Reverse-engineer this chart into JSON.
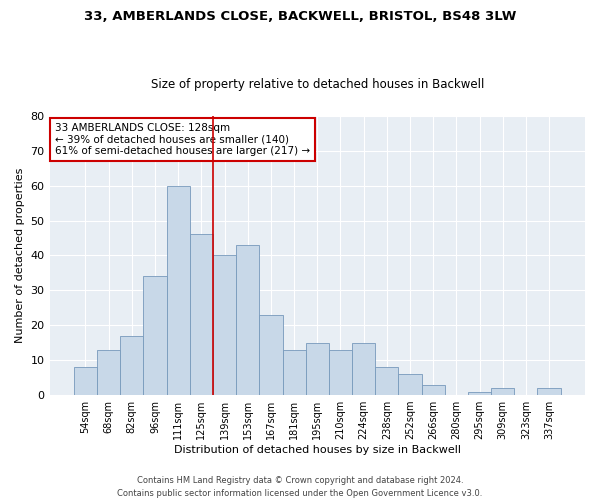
{
  "title1": "33, AMBERLANDS CLOSE, BACKWELL, BRISTOL, BS48 3LW",
  "title2": "Size of property relative to detached houses in Backwell",
  "xlabel": "Distribution of detached houses by size in Backwell",
  "ylabel": "Number of detached properties",
  "categories": [
    "54sqm",
    "68sqm",
    "82sqm",
    "96sqm",
    "111sqm",
    "125sqm",
    "139sqm",
    "153sqm",
    "167sqm",
    "181sqm",
    "195sqm",
    "210sqm",
    "224sqm",
    "238sqm",
    "252sqm",
    "266sqm",
    "280sqm",
    "295sqm",
    "309sqm",
    "323sqm",
    "337sqm"
  ],
  "values": [
    8,
    13,
    17,
    34,
    60,
    46,
    40,
    43,
    23,
    13,
    15,
    13,
    15,
    8,
    6,
    3,
    0,
    1,
    2,
    0,
    2
  ],
  "bar_color": "#c8d8e8",
  "bar_edge_color": "#7799bb",
  "vline_color": "#cc0000",
  "annotation_text": "33 AMBERLANDS CLOSE: 128sqm\n← 39% of detached houses are smaller (140)\n61% of semi-detached houses are larger (217) →",
  "annotation_box_color": "#ffffff",
  "annotation_box_edge_color": "#cc0000",
  "ylim": [
    0,
    80
  ],
  "yticks": [
    0,
    10,
    20,
    30,
    40,
    50,
    60,
    70,
    80
  ],
  "footer": "Contains HM Land Registry data © Crown copyright and database right 2024.\nContains public sector information licensed under the Open Government Licence v3.0.",
  "background_color": "#ffffff",
  "plot_background_color": "#e8eef4"
}
